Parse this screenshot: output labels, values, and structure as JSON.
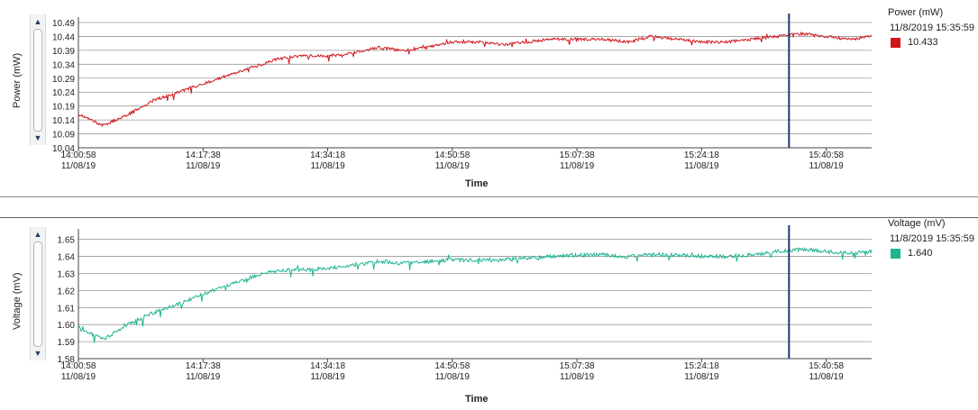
{
  "chart_data": [
    {
      "type": "line",
      "xlabel": "Time",
      "ylabel": "Power (mW)",
      "x_ticks": [
        {
          "time": "14:00:58",
          "date": "11/08/19"
        },
        {
          "time": "14:17:38",
          "date": "11/08/19"
        },
        {
          "time": "14:34:18",
          "date": "11/08/19"
        },
        {
          "time": "14:50:58",
          "date": "11/08/19"
        },
        {
          "time": "15:07:38",
          "date": "11/08/19"
        },
        {
          "time": "15:24:18",
          "date": "11/08/19"
        },
        {
          "time": "15:40:58",
          "date": "11/08/19"
        }
      ],
      "y_ticks": [
        "10.04",
        "10.09",
        "10.14",
        "10.19",
        "10.24",
        "10.29",
        "10.34",
        "10.39",
        "10.44",
        "10.49"
      ],
      "ylim": [
        10.04,
        10.49
      ],
      "xlim": [
        "14:00:58",
        "15:47:02"
      ],
      "cursor_time": "15:35:59",
      "grid": true,
      "legend_position": "right",
      "legend": {
        "title": "Power (mW)",
        "timestamp": "11/8/2019 15:35:59",
        "value": "10.433"
      },
      "series": [
        {
          "color": "#d0161c",
          "x": [
            "14:00:58",
            "14:04:18",
            "14:07:38",
            "14:10:58",
            "14:14:18",
            "14:17:38",
            "14:20:58",
            "14:24:18",
            "14:27:38",
            "14:30:58",
            "14:34:18",
            "14:37:38",
            "14:40:58",
            "14:44:18",
            "14:47:38",
            "14:50:58",
            "14:54:18",
            "14:57:38",
            "15:00:58",
            "15:04:18",
            "15:07:38",
            "15:10:58",
            "15:14:18",
            "15:17:38",
            "15:20:58",
            "15:24:18",
            "15:27:38",
            "15:30:58",
            "15:34:18",
            "15:37:38",
            "15:40:58",
            "15:44:18",
            "15:47:02"
          ],
          "values": [
            10.16,
            10.12,
            10.16,
            10.21,
            10.24,
            10.27,
            10.3,
            10.33,
            10.36,
            10.37,
            10.37,
            10.38,
            10.4,
            10.39,
            10.4,
            10.42,
            10.42,
            10.41,
            10.42,
            10.43,
            10.43,
            10.43,
            10.42,
            10.44,
            10.43,
            10.42,
            10.42,
            10.43,
            10.44,
            10.45,
            10.44,
            10.43,
            10.44
          ]
        }
      ]
    },
    {
      "type": "line",
      "xlabel": "Time",
      "ylabel": "Voltage (mV)",
      "x_ticks": [
        {
          "time": "14:00:58",
          "date": "11/08/19"
        },
        {
          "time": "14:17:38",
          "date": "11/08/19"
        },
        {
          "time": "14:34:18",
          "date": "11/08/19"
        },
        {
          "time": "14:50:58",
          "date": "11/08/19"
        },
        {
          "time": "15:07:38",
          "date": "11/08/19"
        },
        {
          "time": "15:24:18",
          "date": "11/08/19"
        },
        {
          "time": "15:40:58",
          "date": "11/08/19"
        }
      ],
      "y_ticks": [
        "1.58",
        "1.59",
        "1.60",
        "1.61",
        "1.62",
        "1.63",
        "1.64",
        "1.65"
      ],
      "ylim": [
        1.58,
        1.653
      ],
      "xlim": [
        "14:00:58",
        "15:47:02"
      ],
      "cursor_time": "15:35:59",
      "grid": true,
      "legend_position": "right",
      "legend": {
        "title": "Voltage (mV)",
        "timestamp": "11/8/2019 15:35:59",
        "value": "1.640"
      },
      "series": [
        {
          "color": "#1fb592",
          "x": [
            "14:00:58",
            "14:04:18",
            "14:07:38",
            "14:10:58",
            "14:14:18",
            "14:17:38",
            "14:20:58",
            "14:24:18",
            "14:27:38",
            "14:30:58",
            "14:34:18",
            "14:37:38",
            "14:40:58",
            "14:44:18",
            "14:47:38",
            "14:50:58",
            "14:54:18",
            "14:57:38",
            "15:00:58",
            "15:04:18",
            "15:07:38",
            "15:10:58",
            "15:14:18",
            "15:17:38",
            "15:20:58",
            "15:24:18",
            "15:27:38",
            "15:30:58",
            "15:34:18",
            "15:37:38",
            "15:40:58",
            "15:44:18",
            "15:47:02"
          ],
          "values": [
            1.598,
            1.591,
            1.6,
            1.607,
            1.612,
            1.618,
            1.623,
            1.628,
            1.632,
            1.632,
            1.633,
            1.635,
            1.637,
            1.636,
            1.637,
            1.638,
            1.638,
            1.638,
            1.639,
            1.64,
            1.641,
            1.641,
            1.64,
            1.641,
            1.641,
            1.64,
            1.64,
            1.641,
            1.643,
            1.644,
            1.643,
            1.642,
            1.643
          ]
        }
      ]
    }
  ],
  "colors": {
    "cursor": "#1d3b6b",
    "grid": "#9a9a9a",
    "power_series": "#d0161c",
    "voltage_series": "#1fb592"
  },
  "icons": {
    "scroll_up": "▲",
    "scroll_down": "▼"
  }
}
